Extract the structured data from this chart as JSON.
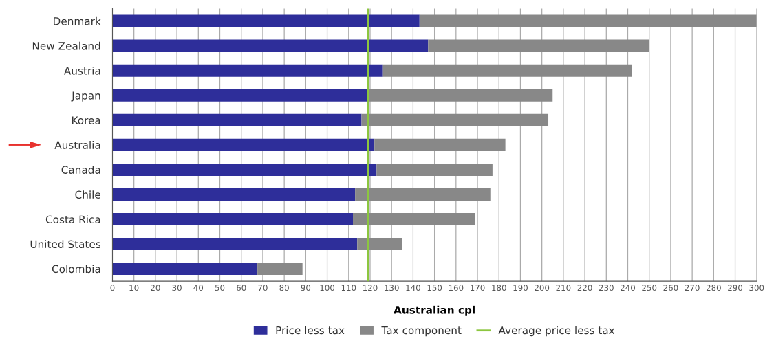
{
  "chart_data": {
    "type": "bar",
    "orientation": "horizontal",
    "stacked": true,
    "categories": [
      "Denmark",
      "New Zealand",
      "Austria",
      "Japan",
      "Korea",
      "Australia",
      "Canada",
      "Chile",
      "Costa Rica",
      "United States",
      "Colombia"
    ],
    "series": [
      {
        "name": "Price less tax",
        "color": "#2e2e9a",
        "values": [
          143,
          147,
          126,
          119,
          116,
          122,
          123,
          113,
          112,
          114,
          67.5
        ]
      },
      {
        "name": "Tax component",
        "color": "#888888",
        "values": [
          157,
          103,
          116,
          86,
          87,
          61,
          54,
          63,
          57,
          21,
          21
        ]
      }
    ],
    "xlabel": "Australian cpl",
    "xlim": [
      0,
      300
    ],
    "xticks": [
      0,
      10,
      20,
      30,
      40,
      50,
      60,
      70,
      80,
      90,
      100,
      110,
      120,
      130,
      140,
      150,
      160,
      170,
      180,
      190,
      200,
      210,
      220,
      230,
      240,
      250,
      260,
      270,
      280,
      290,
      300
    ],
    "ref_lines": [
      {
        "axis": "x",
        "value": 119,
        "label": "Average price less tax",
        "color": "#8cc63f",
        "line_style": "solid"
      }
    ],
    "grid": "x",
    "legend": "bottom"
  }
}
